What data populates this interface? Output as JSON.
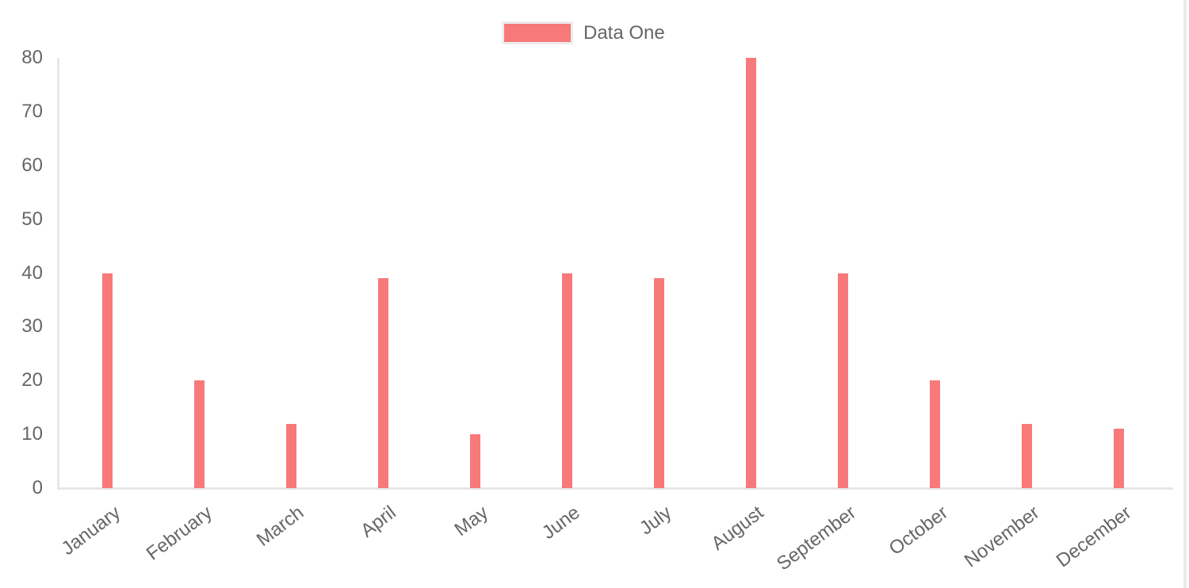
{
  "chart_data": {
    "type": "bar",
    "title": "",
    "categories": [
      "January",
      "February",
      "March",
      "April",
      "May",
      "June",
      "July",
      "August",
      "September",
      "October",
      "November",
      "December"
    ],
    "series": [
      {
        "name": "Data One",
        "color": "#f87979",
        "values": [
          40,
          20,
          12,
          39,
          10,
          40,
          39,
          80,
          40,
          20,
          12,
          11
        ]
      }
    ],
    "xlabel": "",
    "ylabel": "",
    "ylim": [
      0,
      80
    ],
    "yticks": [
      0,
      10,
      20,
      30,
      40,
      50,
      60,
      70,
      80
    ],
    "grid": false,
    "legend_position": "top",
    "x_tick_rotation_deg": -37
  },
  "colors": {
    "bar_fill": "#f87979",
    "axis_line": "#e7e7e7",
    "tick_text": "#666666",
    "legend_swatch_border": "#ededed",
    "page_edge_line": "#eaeaea",
    "background": "#ffffff"
  }
}
